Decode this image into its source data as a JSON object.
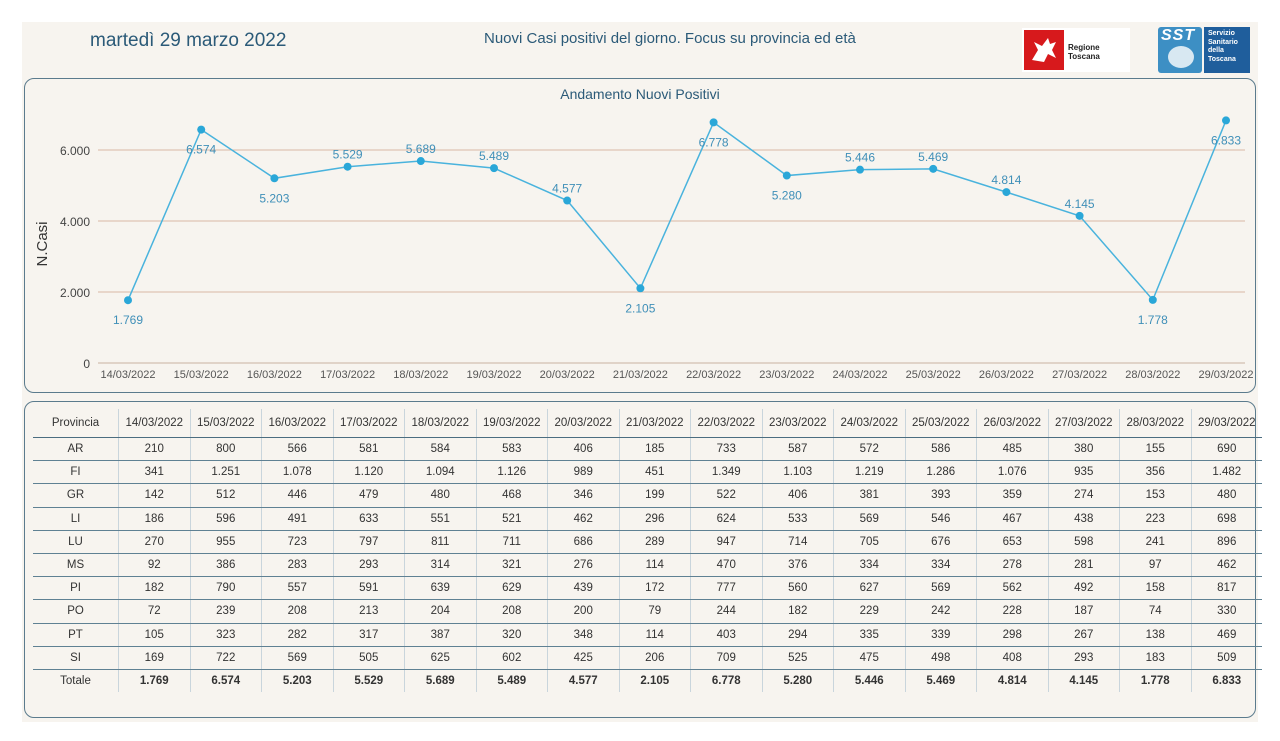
{
  "header": {
    "date": "martedì 29 marzo 2022",
    "title": "Nuovi Casi positivi del giorno. Focus su provincia ed età",
    "logo_regione": "Regione Toscana",
    "logo_sst_short": "SST",
    "logo_sst_lines": [
      "Servizio",
      "Sanitario",
      "della",
      "Toscana"
    ]
  },
  "colors": {
    "line": "#49b3dd",
    "point": "#2aa7d8",
    "label": "#3f8fb8",
    "grid": "#d9b8a4"
  },
  "chart_data": {
    "type": "line",
    "title": "Andamento Nuovi Positivi",
    "xlabel": "",
    "ylabel": "N.Casi",
    "ylim": [
      0,
      7000
    ],
    "yticks": [
      0,
      2000,
      4000,
      6000
    ],
    "ytick_labels": [
      "0",
      "2.000",
      "4.000",
      "6.000"
    ],
    "grid": "horizontal",
    "categories": [
      "14/03/2022",
      "15/03/2022",
      "16/03/2022",
      "17/03/2022",
      "18/03/2022",
      "19/03/2022",
      "20/03/2022",
      "21/03/2022",
      "22/03/2022",
      "23/03/2022",
      "24/03/2022",
      "25/03/2022",
      "26/03/2022",
      "27/03/2022",
      "28/03/2022",
      "29/03/2022"
    ],
    "values": [
      1769,
      6574,
      5203,
      5529,
      5689,
      5489,
      4577,
      2105,
      6778,
      5280,
      5446,
      5469,
      4814,
      4145,
      1778,
      6833
    ],
    "value_labels": [
      "1.769",
      "6.574",
      "5.203",
      "5.529",
      "5.689",
      "5.489",
      "4.577",
      "2.105",
      "6.778",
      "5.280",
      "5.446",
      "5.469",
      "4.814",
      "4.145",
      "1.778",
      "6.833"
    ]
  },
  "table": {
    "header_label": "Provincia",
    "dates": [
      "14/03/2022",
      "15/03/2022",
      "16/03/2022",
      "17/03/2022",
      "18/03/2022",
      "19/03/2022",
      "20/03/2022",
      "21/03/2022",
      "22/03/2022",
      "23/03/2022",
      "24/03/2022",
      "25/03/2022",
      "26/03/2022",
      "27/03/2022",
      "28/03/2022",
      "29/03/2022"
    ],
    "rows": [
      {
        "name": "AR",
        "values": [
          "210",
          "800",
          "566",
          "581",
          "584",
          "583",
          "406",
          "185",
          "733",
          "587",
          "572",
          "586",
          "485",
          "380",
          "155",
          "690"
        ]
      },
      {
        "name": "FI",
        "values": [
          "341",
          "1.251",
          "1.078",
          "1.120",
          "1.094",
          "1.126",
          "989",
          "451",
          "1.349",
          "1.103",
          "1.219",
          "1.286",
          "1.076",
          "935",
          "356",
          "1.482"
        ]
      },
      {
        "name": "GR",
        "values": [
          "142",
          "512",
          "446",
          "479",
          "480",
          "468",
          "346",
          "199",
          "522",
          "406",
          "381",
          "393",
          "359",
          "274",
          "153",
          "480"
        ]
      },
      {
        "name": "LI",
        "values": [
          "186",
          "596",
          "491",
          "633",
          "551",
          "521",
          "462",
          "296",
          "624",
          "533",
          "569",
          "546",
          "467",
          "438",
          "223",
          "698"
        ]
      },
      {
        "name": "LU",
        "values": [
          "270",
          "955",
          "723",
          "797",
          "811",
          "711",
          "686",
          "289",
          "947",
          "714",
          "705",
          "676",
          "653",
          "598",
          "241",
          "896"
        ]
      },
      {
        "name": "MS",
        "values": [
          "92",
          "386",
          "283",
          "293",
          "314",
          "321",
          "276",
          "114",
          "470",
          "376",
          "334",
          "334",
          "278",
          "281",
          "97",
          "462"
        ]
      },
      {
        "name": "PI",
        "values": [
          "182",
          "790",
          "557",
          "591",
          "639",
          "629",
          "439",
          "172",
          "777",
          "560",
          "627",
          "569",
          "562",
          "492",
          "158",
          "817"
        ]
      },
      {
        "name": "PO",
        "values": [
          "72",
          "239",
          "208",
          "213",
          "204",
          "208",
          "200",
          "79",
          "244",
          "182",
          "229",
          "242",
          "228",
          "187",
          "74",
          "330"
        ]
      },
      {
        "name": "PT",
        "values": [
          "105",
          "323",
          "282",
          "317",
          "387",
          "320",
          "348",
          "114",
          "403",
          "294",
          "335",
          "339",
          "298",
          "267",
          "138",
          "469"
        ]
      },
      {
        "name": "SI",
        "values": [
          "169",
          "722",
          "569",
          "505",
          "625",
          "602",
          "425",
          "206",
          "709",
          "525",
          "475",
          "498",
          "408",
          "293",
          "183",
          "509"
        ]
      }
    ],
    "total": {
      "name": "Totale",
      "values": [
        "1.769",
        "6.574",
        "5.203",
        "5.529",
        "5.689",
        "5.489",
        "4.577",
        "2.105",
        "6.778",
        "5.280",
        "5.446",
        "5.469",
        "4.814",
        "4.145",
        "1.778",
        "6.833"
      ]
    }
  }
}
